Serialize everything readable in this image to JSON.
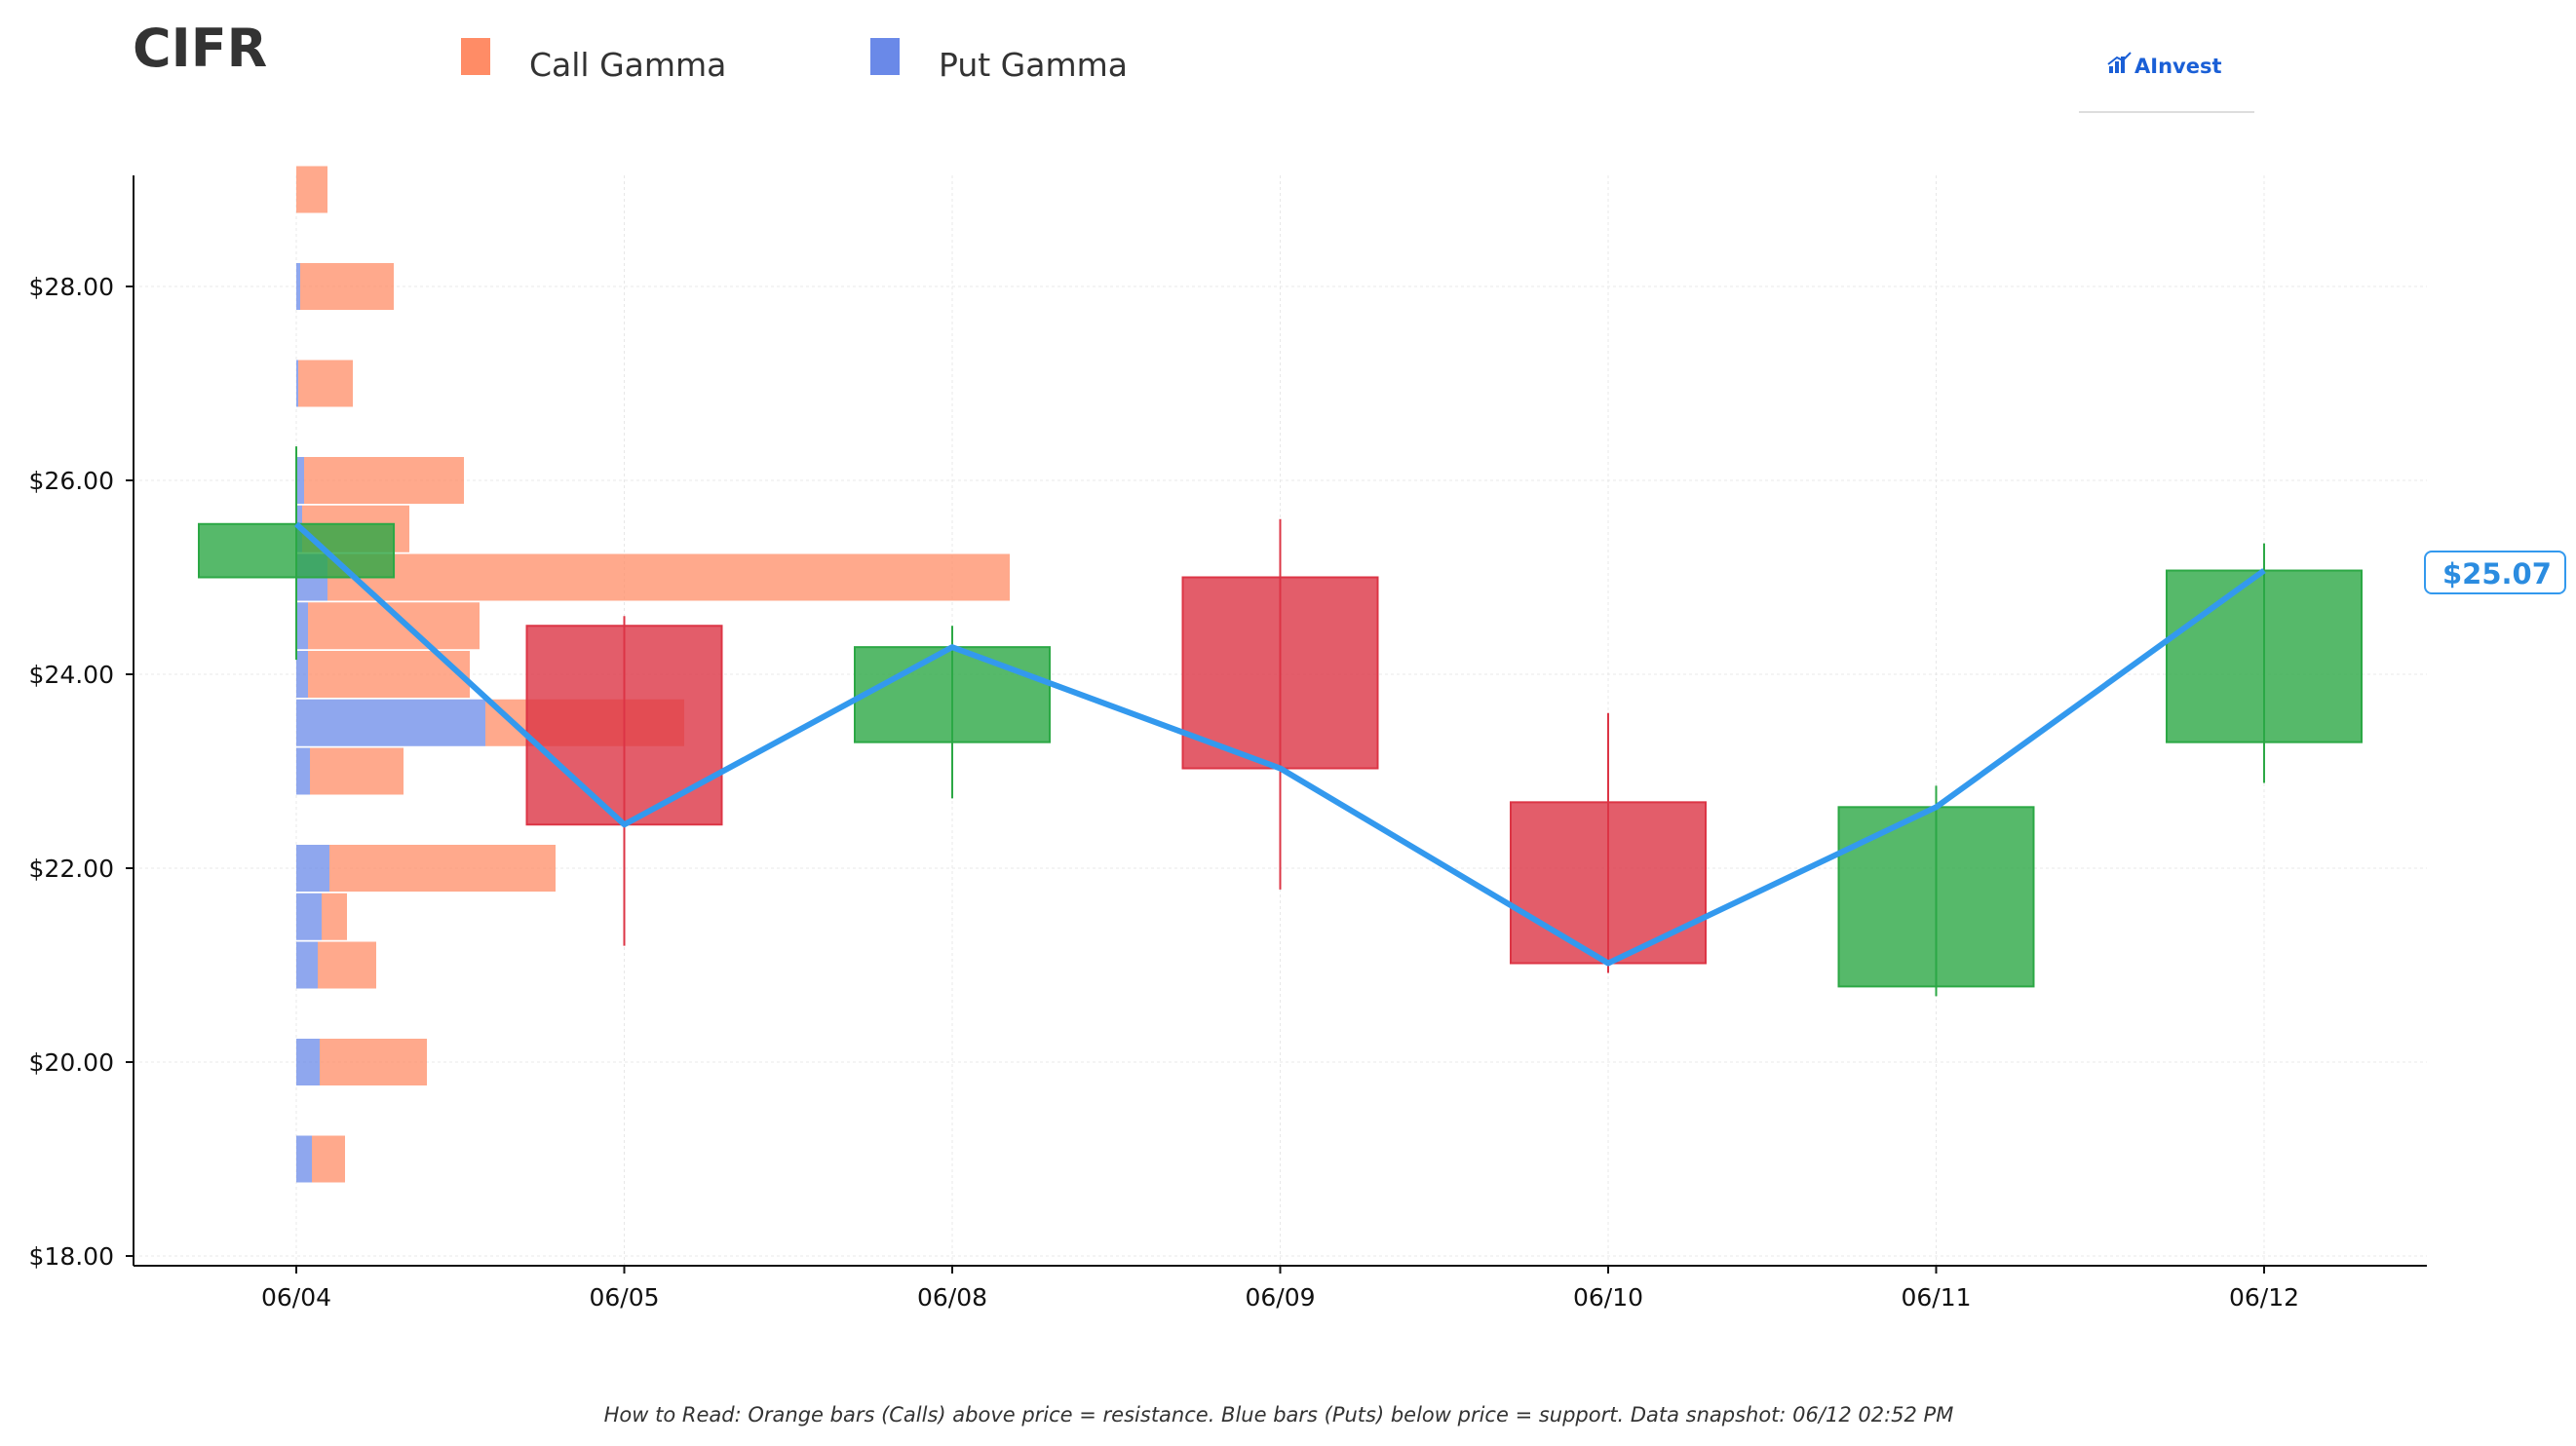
{
  "ticker": "CIFR",
  "legend": [
    {
      "label": "Call Gamma",
      "color": "#ff8c66"
    },
    {
      "label": "Put Gamma",
      "color": "#6a89e8"
    }
  ],
  "logo": {
    "text": "AInvest",
    "icon": "bar-chart-logo-icon"
  },
  "footer": "How to Read: Orange bars (Calls) above price = resistance. Blue bars (Puts) below price = support. Data snapshot: 06/12 02:52 PM",
  "price_label": "$25.07",
  "colors": {
    "up": "#2ca845",
    "down": "#dc3545",
    "price_line": "#3399ee",
    "call": "#ff8c66",
    "put": "#6a89e8",
    "grid": "#e8e8e8"
  },
  "chart_data": {
    "type": "candlestick",
    "title": "CIFR",
    "x_categories": [
      "06/04",
      "06/05",
      "06/08",
      "06/09",
      "06/10",
      "06/11",
      "06/12"
    ],
    "y_ticks": [
      "$18.00",
      "$20.00",
      "$22.00",
      "$24.00",
      "$26.00",
      "$28.00"
    ],
    "y_tick_values": [
      18,
      20,
      22,
      24,
      26,
      28
    ],
    "ylim": [
      17.9,
      29.1
    ],
    "grid": true,
    "candles": [
      {
        "date": "06/04",
        "open": 25.0,
        "high": 26.35,
        "low": 24.15,
        "close": 25.55
      },
      {
        "date": "06/05",
        "open": 24.5,
        "high": 24.6,
        "low": 21.2,
        "close": 22.45
      },
      {
        "date": "06/08",
        "open": 23.3,
        "high": 24.5,
        "low": 22.72,
        "close": 24.28
      },
      {
        "date": "06/09",
        "open": 25.0,
        "high": 25.6,
        "low": 21.78,
        "close": 23.03
      },
      {
        "date": "06/10",
        "open": 22.68,
        "high": 23.6,
        "low": 20.92,
        "close": 21.02
      },
      {
        "date": "06/11",
        "open": 20.78,
        "high": 22.85,
        "low": 20.68,
        "close": 22.63
      },
      {
        "date": "06/12",
        "open": 23.3,
        "high": 25.35,
        "low": 22.88,
        "close": 25.07
      }
    ],
    "price_line": [
      25.55,
      22.45,
      24.28,
      23.03,
      21.02,
      22.63,
      25.07
    ],
    "gamma_profile": {
      "strikes": [
        19.0,
        20.0,
        21.0,
        21.5,
        22.0,
        23.0,
        23.5,
        24.0,
        24.5,
        25.0,
        25.5,
        26.0,
        27.0,
        28.0,
        29.0
      ],
      "call_gamma": [
        0.17,
        0.55,
        0.3,
        0.13,
        1.16,
        0.48,
        1.02,
        0.83,
        0.88,
        3.5,
        0.55,
        0.82,
        0.28,
        0.48,
        0.16
      ],
      "put_gamma": [
        0.08,
        0.12,
        0.11,
        0.13,
        0.17,
        0.07,
        0.97,
        0.06,
        0.06,
        0.16,
        0.03,
        0.04,
        0.01,
        0.02,
        0.0
      ]
    }
  }
}
